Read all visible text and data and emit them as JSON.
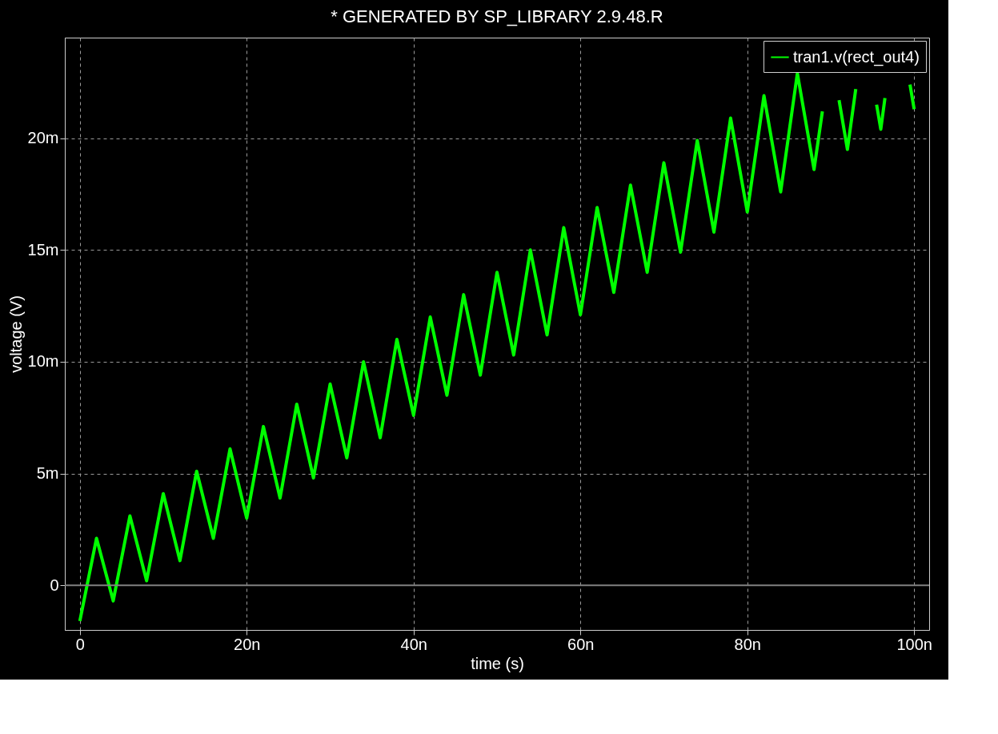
{
  "chart_data": {
    "type": "line",
    "title": "* GENERATED BY SP_LIBRARY 2.9.48.R",
    "xlabel": "time (s)",
    "ylabel": "voltage (V)",
    "x": [
      0,
      2,
      4,
      6,
      8,
      10,
      12,
      14,
      16,
      18,
      20,
      22,
      24,
      26,
      28,
      30,
      32,
      34,
      36,
      38,
      40,
      42,
      44,
      46,
      48,
      50,
      52,
      54,
      56,
      58,
      60,
      62,
      64,
      66,
      68,
      70,
      72,
      74,
      76,
      78,
      80,
      82,
      84,
      86,
      88,
      89,
      90,
      91,
      92,
      93,
      94,
      95.5,
      96,
      96.5,
      98,
      99.5,
      100
    ],
    "series": [
      {
        "name": "tran1.v(rect_out4)",
        "color": "#00ff00",
        "values": [
          -1.6,
          2.1,
          -0.7,
          3.1,
          0.2,
          4.1,
          1.1,
          5.1,
          2.1,
          6.1,
          3.0,
          7.1,
          3.9,
          8.1,
          4.8,
          9.0,
          5.7,
          10.0,
          6.6,
          11.0,
          7.6,
          12.0,
          8.5,
          13.0,
          9.4,
          14.0,
          10.3,
          15.0,
          11.2,
          16.0,
          12.1,
          16.9,
          13.1,
          17.9,
          14.0,
          18.9,
          14.9,
          19.9,
          15.8,
          20.9,
          16.7,
          21.9,
          17.6,
          22.9,
          18.6,
          21.2,
          null,
          21.7,
          19.5,
          22.2,
          null,
          21.5,
          20.4,
          21.8,
          null,
          22.4,
          21.3
        ]
      }
    ],
    "xlim": [
      -1.8,
      101.8
    ],
    "ylim": [
      -2,
      24.5
    ],
    "xticks": [
      0,
      {
        "value": 20,
        "label": "20n"
      },
      {
        "value": 40,
        "label": "40n"
      },
      {
        "value": 60,
        "label": "60n"
      },
      {
        "value": 80,
        "label": "80n"
      },
      {
        "value": 100,
        "label": "100n"
      }
    ],
    "yticks": [
      0,
      {
        "value": 5,
        "label": "5m"
      },
      {
        "value": 10,
        "label": "10m"
      },
      {
        "value": 15,
        "label": "15m"
      },
      {
        "value": 20,
        "label": "20m"
      }
    ],
    "ref_lines": [
      {
        "axis": "y",
        "value": 0,
        "color": "#808080",
        "line_style": "solid"
      }
    ],
    "grid": true,
    "legend": "top right",
    "marker": "none",
    "line_style": "solid"
  }
}
